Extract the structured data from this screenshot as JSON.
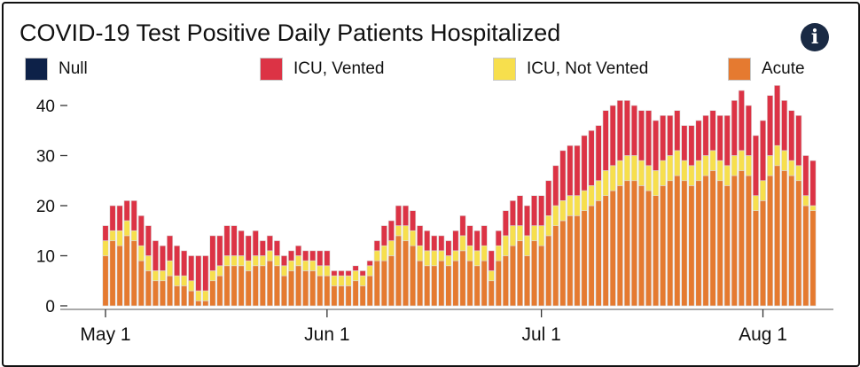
{
  "chart_data": {
    "type": "bar",
    "stacked": true,
    "title": "COVID-19 Test Positive Daily Patients Hospitalized",
    "xlabel": "",
    "ylabel": "",
    "ylim": [
      0,
      42
    ],
    "y_ticks": [
      0,
      10,
      20,
      30,
      40
    ],
    "x_ticks": [
      {
        "label": "May 1",
        "day_index": 0
      },
      {
        "label": "Jun 1",
        "day_index": 31
      },
      {
        "label": "Jul 1",
        "day_index": 61
      },
      {
        "label": "Aug 1",
        "day_index": 92
      }
    ],
    "categories_note": "Daily values from May 1 through Aug 8",
    "legend_position": "top",
    "series": [
      {
        "name": "Null",
        "color": "#0d2148",
        "values": [
          0,
          0,
          0,
          0,
          0,
          0,
          0,
          0,
          0,
          0,
          0,
          0,
          0,
          0,
          0,
          0,
          0,
          0,
          0,
          0,
          0,
          0,
          0,
          0,
          0,
          0,
          0,
          0,
          0,
          0,
          0,
          0,
          0,
          0,
          0,
          0,
          0,
          0,
          0,
          0,
          0,
          0,
          0,
          0,
          0,
          0,
          0,
          0,
          0,
          0,
          0,
          0,
          0,
          0,
          0,
          0,
          0,
          0,
          0,
          0,
          0,
          0,
          0,
          0,
          0,
          0,
          0,
          0,
          0,
          0,
          0,
          0,
          0,
          0,
          0,
          0,
          0,
          0,
          0,
          0,
          0,
          0,
          0,
          0,
          0,
          0,
          0,
          0,
          0,
          0,
          0,
          0,
          0,
          0,
          0,
          0,
          0,
          0,
          0,
          0
        ]
      },
      {
        "name": "Acute",
        "color": "#e57a30",
        "values": [
          10,
          13,
          12,
          14,
          13,
          9,
          7,
          5,
          5,
          6,
          4,
          4,
          3,
          1,
          1,
          5,
          6,
          8,
          8,
          8,
          7,
          8,
          8,
          9,
          8,
          6,
          7,
          8,
          7,
          7,
          6,
          6,
          4,
          4,
          4,
          5,
          4,
          6,
          9,
          9,
          10,
          14,
          13,
          12,
          9,
          8,
          8,
          9,
          8,
          9,
          11,
          9,
          8,
          9,
          5,
          9,
          10,
          12,
          13,
          10,
          13,
          12,
          14,
          16,
          17,
          18,
          18,
          19,
          20,
          21,
          22,
          23,
          24,
          25,
          25,
          24,
          23,
          22,
          24,
          25,
          26,
          25,
          24,
          25,
          26,
          27,
          25,
          24,
          26,
          27,
          26,
          19,
          21,
          26,
          28,
          27,
          26,
          25,
          20,
          19
        ]
      },
      {
        "name": "ICU, Not Vented",
        "color": "#f7df4d",
        "values": [
          3,
          2,
          3,
          3,
          2,
          3,
          3,
          2,
          2,
          3,
          2,
          2,
          2,
          2,
          2,
          2,
          2,
          2,
          2,
          2,
          2,
          2,
          2,
          2,
          2,
          2,
          2,
          2,
          2,
          2,
          2,
          2,
          2,
          2,
          2,
          2,
          2,
          2,
          2,
          3,
          3,
          2,
          3,
          3,
          3,
          3,
          3,
          2,
          2,
          2,
          3,
          3,
          3,
          3,
          2,
          3,
          4,
          4,
          3,
          4,
          3,
          4,
          4,
          4,
          4,
          4,
          4,
          4,
          4,
          4,
          5,
          5,
          5,
          5,
          5,
          5,
          5,
          5,
          5,
          5,
          5,
          4,
          4,
          4,
          4,
          4,
          4,
          4,
          4,
          4,
          4,
          3,
          4,
          4,
          4,
          4,
          3,
          3,
          2,
          1
        ]
      },
      {
        "name": "ICU, Vented",
        "color": "#dc3345",
        "values": [
          3,
          5,
          5,
          4,
          6,
          6,
          6,
          6,
          5,
          5,
          6,
          5,
          5,
          7,
          7,
          7,
          6,
          6,
          6,
          5,
          5,
          5,
          3,
          3,
          3,
          2,
          2,
          2,
          2,
          2,
          3,
          3,
          1,
          1,
          1,
          1,
          1,
          1,
          2,
          4,
          4,
          4,
          4,
          4,
          4,
          4,
          3,
          3,
          3,
          4,
          4,
          4,
          4,
          4,
          4,
          3,
          5,
          5,
          6,
          6,
          6,
          6,
          7,
          8,
          10,
          10,
          10,
          11,
          11,
          11,
          12,
          12,
          12,
          11,
          10,
          10,
          11,
          10,
          9,
          8,
          8,
          7,
          8,
          8,
          8,
          8,
          9,
          10,
          11,
          12,
          10,
          12,
          12,
          12,
          12,
          10,
          10,
          10,
          8,
          9
        ]
      }
    ]
  },
  "legend": {
    "items": [
      {
        "label": "Null",
        "color": "#0d2148"
      },
      {
        "label": "ICU, Vented",
        "color": "#dc3345"
      },
      {
        "label": "ICU, Not Vented",
        "color": "#f7df4d"
      },
      {
        "label": "Acute",
        "color": "#e57a30"
      }
    ]
  },
  "info_button": {
    "icon": "info-icon",
    "symbol": "i"
  }
}
